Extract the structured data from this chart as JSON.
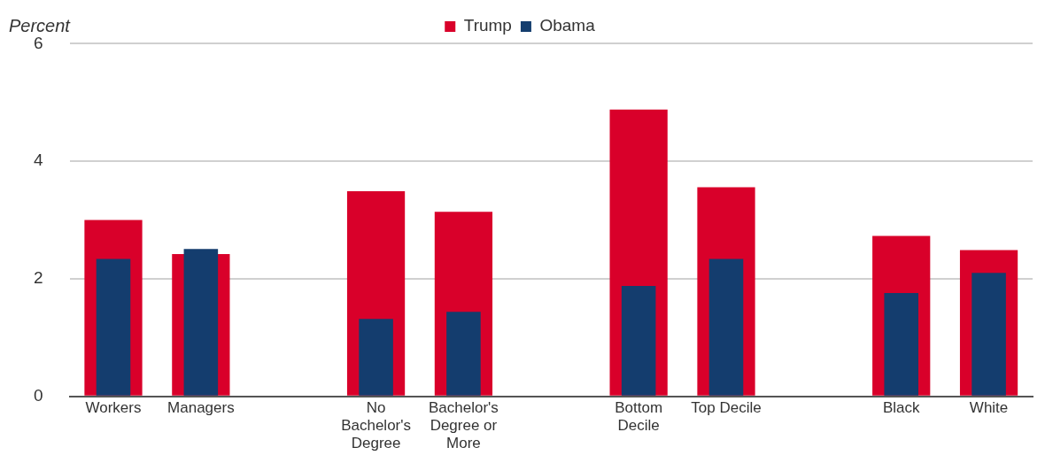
{
  "chart_data": {
    "type": "bar",
    "ylabel": "Percent",
    "categories": [
      "Workers",
      "Managers",
      null,
      "No Bachelor's Degree",
      "Bachelor's Degree or More",
      null,
      "Bottom Decile",
      "Top Decile",
      null,
      "Black",
      "White"
    ],
    "series": [
      {
        "name": "Trump",
        "color": "#d9002a",
        "values": [
          3.0,
          2.42,
          null,
          3.49,
          3.14,
          null,
          4.88,
          3.56,
          null,
          2.73,
          2.49
        ]
      },
      {
        "name": "Obama",
        "color": "#143d6e",
        "values": [
          2.34,
          2.51,
          null,
          1.32,
          1.44,
          null,
          1.88,
          2.34,
          null,
          1.76,
          2.1
        ]
      }
    ],
    "ylim": [
      0,
      6
    ],
    "yticks": [
      0,
      2,
      4,
      6
    ],
    "grid": "y",
    "legend": "top"
  }
}
